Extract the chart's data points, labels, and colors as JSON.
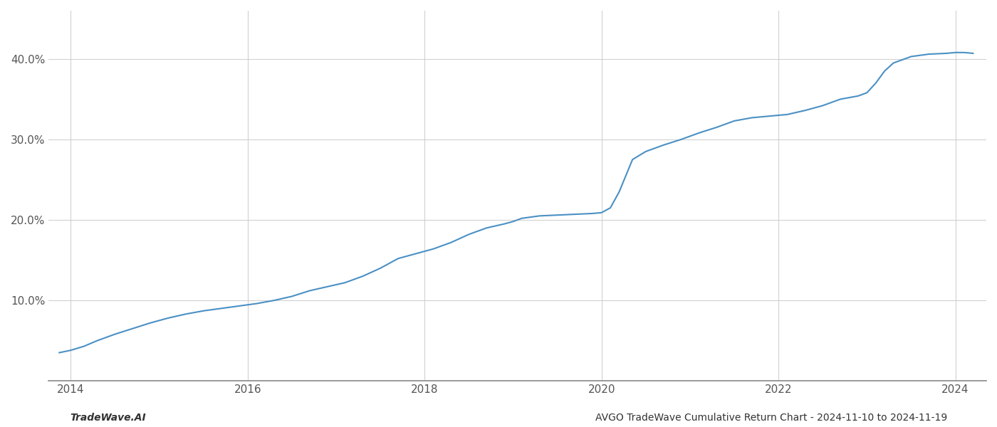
{
  "title": "AVGO TradeWave Cumulative Return Chart - 2024-11-10 to 2024-11-19",
  "line_color": "#4a90c4",
  "background_color": "#ffffff",
  "grid_color": "#cccccc",
  "x_values": [
    2013.87,
    2014.0,
    2014.15,
    2014.3,
    2014.5,
    2014.7,
    2014.9,
    2015.1,
    2015.3,
    2015.5,
    2015.7,
    2015.9,
    2016.1,
    2016.3,
    2016.5,
    2016.7,
    2016.9,
    2017.1,
    2017.3,
    2017.5,
    2017.7,
    2017.9,
    2018.1,
    2018.3,
    2018.5,
    2018.7,
    2018.9,
    2019.0,
    2019.1,
    2019.3,
    2019.5,
    2019.7,
    2019.9,
    2020.0,
    2020.1,
    2020.2,
    2020.35,
    2020.5,
    2020.7,
    2020.9,
    2021.1,
    2021.3,
    2021.5,
    2021.7,
    2021.9,
    2022.1,
    2022.3,
    2022.5,
    2022.7,
    2022.9,
    2023.0,
    2023.1,
    2023.2,
    2023.3,
    2023.5,
    2023.7,
    2023.9,
    2024.0,
    2024.1,
    2024.2
  ],
  "y_values": [
    3.5,
    3.8,
    4.3,
    5.0,
    5.8,
    6.5,
    7.2,
    7.8,
    8.3,
    8.7,
    9.0,
    9.3,
    9.6,
    10.0,
    10.5,
    11.2,
    11.7,
    12.2,
    13.0,
    14.0,
    15.2,
    15.8,
    16.4,
    17.2,
    18.2,
    19.0,
    19.5,
    19.8,
    20.2,
    20.5,
    20.6,
    20.7,
    20.8,
    20.9,
    21.5,
    23.5,
    27.5,
    28.5,
    29.3,
    30.0,
    30.8,
    31.5,
    32.3,
    32.7,
    32.9,
    33.1,
    33.6,
    34.2,
    35.0,
    35.4,
    35.8,
    37.0,
    38.5,
    39.5,
    40.3,
    40.6,
    40.7,
    40.8,
    40.8,
    40.7
  ],
  "yticks": [
    10.0,
    20.0,
    30.0,
    40.0
  ],
  "xticks": [
    2014,
    2016,
    2018,
    2020,
    2022,
    2024
  ],
  "ylim": [
    0,
    46
  ],
  "xlim": [
    2013.75,
    2024.35
  ],
  "line_width": 1.5,
  "footer_left": "TradeWave.AI",
  "footer_right": "AVGO TradeWave Cumulative Return Chart - 2024-11-10 to 2024-11-19"
}
